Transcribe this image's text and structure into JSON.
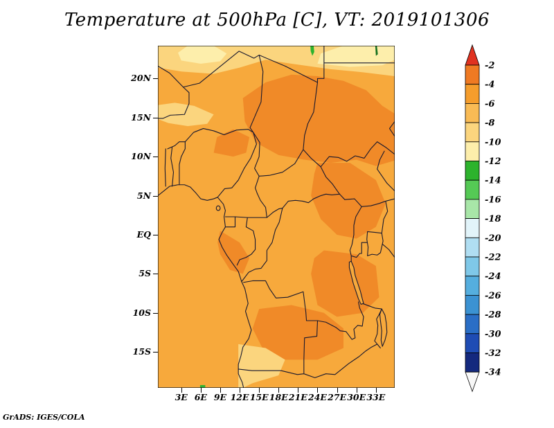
{
  "title": "Temperature at 500hPa [C], VT: 2019101306",
  "attribution": "GrADS: IGES/COLA",
  "axes": {
    "lat": [
      {
        "label": "20N",
        "value": 20
      },
      {
        "label": "15N",
        "value": 15
      },
      {
        "label": "10N",
        "value": 10
      },
      {
        "label": "5N",
        "value": 5
      },
      {
        "label": "EQ",
        "value": 0
      },
      {
        "label": "5S",
        "value": -5
      },
      {
        "label": "10S",
        "value": -10
      },
      {
        "label": "15S",
        "value": -15
      }
    ],
    "lon": [
      {
        "label": "3E",
        "value": 3
      },
      {
        "label": "6E",
        "value": 6
      },
      {
        "label": "9E",
        "value": 9
      },
      {
        "label": "12E",
        "value": 12
      },
      {
        "label": "15E",
        "value": 15
      },
      {
        "label": "18E",
        "value": 18
      },
      {
        "label": "21E",
        "value": 21
      },
      {
        "label": "24E",
        "value": 24
      },
      {
        "label": "27E",
        "value": 27
      },
      {
        "label": "30E",
        "value": 30
      },
      {
        "label": "33E",
        "value": 33
      }
    ]
  },
  "colorbar": {
    "labels": [
      "-2",
      "-4",
      "-6",
      "-8",
      "-10",
      "-12",
      "-14",
      "-16",
      "-18",
      "-20",
      "-22",
      "-24",
      "-26",
      "-28",
      "-30",
      "-32",
      "-34"
    ],
    "above_color": "#e03220",
    "band_colors": [
      "#ef7a23",
      "#f59d2c",
      "#f9bb55",
      "#fbd57e",
      "#fdeeab",
      "#2db32d",
      "#55c955",
      "#a8e6a8",
      "#e2f4fa",
      "#b0def2",
      "#7fc8e8",
      "#55aede",
      "#3b92d2",
      "#2a6ec6",
      "#1f4cb4",
      "#14297e"
    ],
    "below_color": "#f7f7f7"
  },
  "chart_data": {
    "type": "heatmap",
    "title": "Temperature at 500hPa [C], VT: 2019101306",
    "variable": "Temperature",
    "level": "500hPa",
    "units": "C",
    "valid_time": "2019101306",
    "x_tick_labels": [
      "3E",
      "6E",
      "9E",
      "12E",
      "15E",
      "18E",
      "21E",
      "24E",
      "27E",
      "30E",
      "33E"
    ],
    "y_tick_labels": [
      "20N",
      "15N",
      "10N",
      "5N",
      "EQ",
      "5S",
      "10S",
      "15S"
    ],
    "lon_range_deg_east": [
      0,
      36
    ],
    "lat_range_deg_north": [
      -20,
      24
    ],
    "contour_interval": 2,
    "levels": [
      -34,
      -32,
      -30,
      -28,
      -26,
      -24,
      -22,
      -20,
      -18,
      -16,
      -14,
      -12,
      -10,
      -8,
      -6,
      -4,
      -2
    ],
    "legend_position": "right",
    "grid_estimate": {
      "lons_deg_east": [
        3,
        9,
        15,
        21,
        27,
        33
      ],
      "lats_deg_north": [
        20,
        15,
        10,
        5,
        0,
        -5,
        -10,
        -15
      ],
      "values_c": [
        [
          -8,
          -9,
          -8,
          -6,
          -5,
          -6
        ],
        [
          -7,
          -8,
          -6,
          -5,
          -5,
          -5
        ],
        [
          -6,
          -6,
          -5,
          -5,
          -5,
          -5
        ],
        [
          -6,
          -6,
          -5,
          -5,
          -4,
          -5
        ],
        [
          -6,
          -6,
          -6,
          -5,
          -5,
          -4
        ],
        [
          -6,
          -5,
          -5,
          -4,
          -4,
          -5
        ],
        [
          -6,
          -6,
          -5,
          -4,
          -5,
          -5
        ],
        [
          -7,
          -8,
          -6,
          -6,
          -5,
          -6
        ]
      ]
    }
  }
}
